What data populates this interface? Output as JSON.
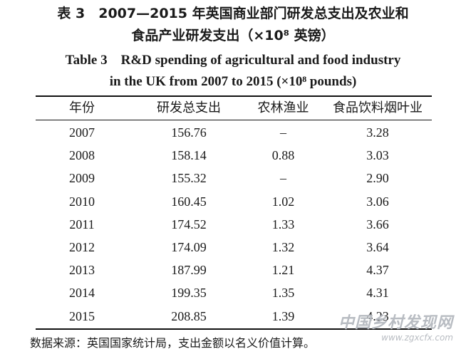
{
  "title": {
    "cn_line1": "表 3　2007—2015 年英国商业部门研发总支出及农业和",
    "cn_line2": "食品产业研发支出（×10⁸ 英镑）",
    "en_line1": "Table 3　R&D spending of agricultural and food industry",
    "en_line2": "in the UK from 2007 to 2015 (×10⁸ pounds)"
  },
  "table": {
    "headers": [
      "年份",
      "研发总支出",
      "农林渔业",
      "食品饮料烟叶业"
    ],
    "rows": [
      [
        "2007",
        "156.76",
        "–",
        "3.28"
      ],
      [
        "2008",
        "158.14",
        "0.88",
        "3.03"
      ],
      [
        "2009",
        "155.32",
        "–",
        "2.90"
      ],
      [
        "2010",
        "160.45",
        "1.02",
        "3.06"
      ],
      [
        "2011",
        "174.52",
        "1.33",
        "3.66"
      ],
      [
        "2012",
        "174.09",
        "1.32",
        "3.64"
      ],
      [
        "2013",
        "187.99",
        "1.21",
        "4.37"
      ],
      [
        "2014",
        "199.35",
        "1.35",
        "4.31"
      ],
      [
        "2015",
        "208.85",
        "1.39",
        "4.23"
      ]
    ]
  },
  "note": "数据来源：英国国家统计局，支出金额以名义价值计算。",
  "watermark": {
    "line1": "中国乡村发现网",
    "line2": "www.zgxcfx.com"
  }
}
